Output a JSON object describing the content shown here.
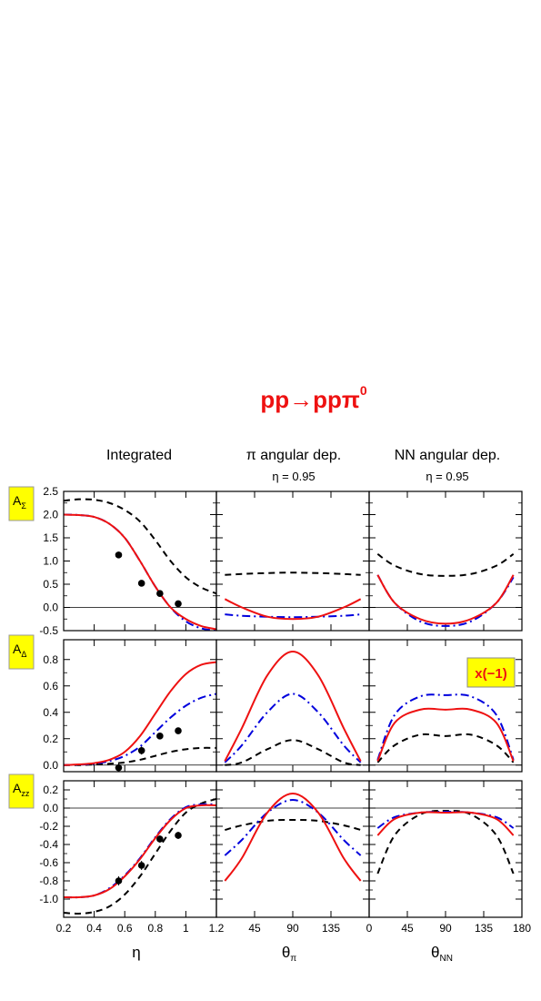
{
  "title": {
    "main": "pp→ppπ",
    "sup": "0"
  },
  "colors": {
    "black_dashed": "#000000",
    "blue_dashdot": "#0000dd",
    "red_solid": "#ee1111",
    "title": "#ee1111",
    "badge_bg": "#ffff00"
  },
  "columns": [
    {
      "header": "Integrated",
      "sub": ""
    },
    {
      "header": "π angular dep.",
      "sub": "η = 0.95"
    },
    {
      "header": "NN angular dep.",
      "sub": "η = 0.95"
    }
  ],
  "rows": [
    {
      "label": "A",
      "sub": "Σ"
    },
    {
      "label": "A",
      "sub": "Δ"
    },
    {
      "label": "A",
      "sub": "zz"
    }
  ],
  "xaxes": [
    {
      "label": "η",
      "sub": "",
      "range": [
        0.2,
        1.2
      ],
      "ticks": [
        "0.2",
        "0.4",
        "0.6",
        "0.8",
        "1",
        "1.2"
      ],
      "tickvals": [
        0.2,
        0.4,
        0.6,
        0.8,
        1.0,
        1.2
      ]
    },
    {
      "label": "θ",
      "sub": "π",
      "range": [
        0,
        180
      ],
      "ticks": [
        "45",
        "90",
        "135"
      ],
      "tickvals": [
        45,
        90,
        135
      ]
    },
    {
      "label": "θ",
      "sub": "NN",
      "range": [
        0,
        180
      ],
      "ticks": [
        "0",
        "45",
        "90",
        "135",
        "180"
      ],
      "tickvals": [
        0,
        45,
        90,
        135,
        180
      ]
    }
  ],
  "annotation": "x(−1)",
  "chart_data": [
    {
      "type": "line",
      "row": 0,
      "col": 0,
      "xlim": [
        0.2,
        1.2
      ],
      "ylim": [
        -0.5,
        2.5
      ],
      "yticks": [
        "-0.5",
        "0.0",
        "0.5",
        "1.0",
        "1.5",
        "2.0",
        "2.5"
      ],
      "ytickvals": [
        -0.5,
        0.0,
        0.5,
        1.0,
        1.5,
        2.0,
        2.5
      ],
      "series": [
        {
          "style": "black_dashed",
          "x": [
            0.2,
            0.3,
            0.4,
            0.5,
            0.6,
            0.7,
            0.8,
            0.9,
            1.0,
            1.1,
            1.2
          ],
          "y": [
            2.3,
            2.33,
            2.32,
            2.25,
            2.1,
            1.85,
            1.45,
            1.0,
            0.65,
            0.43,
            0.3
          ]
        },
        {
          "style": "blue_dashdot",
          "x": [
            0.2,
            0.3,
            0.4,
            0.5,
            0.6,
            0.7,
            0.8,
            0.9,
            1.0,
            1.1,
            1.2
          ],
          "y": [
            2.0,
            1.99,
            1.95,
            1.8,
            1.5,
            1.0,
            0.45,
            0.0,
            -0.3,
            -0.45,
            -0.5
          ]
        },
        {
          "style": "red_solid",
          "x": [
            0.2,
            0.3,
            0.4,
            0.5,
            0.6,
            0.7,
            0.8,
            0.9,
            1.0,
            1.1,
            1.2
          ],
          "y": [
            2.0,
            1.99,
            1.95,
            1.8,
            1.5,
            1.0,
            0.45,
            0.0,
            -0.25,
            -0.4,
            -0.47
          ]
        }
      ],
      "points": {
        "x": [
          0.56,
          0.71,
          0.83,
          0.95
        ],
        "y": [
          1.13,
          0.52,
          0.3,
          0.08
        ],
        "err": [
          0.07,
          0.06,
          0.05,
          0.05
        ]
      }
    },
    {
      "type": "line",
      "row": 0,
      "col": 1,
      "xlim": [
        0,
        180
      ],
      "ylim": [
        -0.5,
        2.5
      ],
      "series": [
        {
          "style": "black_dashed",
          "x": [
            10,
            30,
            60,
            90,
            120,
            150,
            170
          ],
          "y": [
            0.7,
            0.72,
            0.74,
            0.75,
            0.74,
            0.72,
            0.7
          ]
        },
        {
          "style": "blue_dashdot",
          "x": [
            10,
            30,
            60,
            90,
            120,
            150,
            170
          ],
          "y": [
            -0.15,
            -0.18,
            -0.2,
            -0.21,
            -0.2,
            -0.18,
            -0.15
          ]
        },
        {
          "style": "red_solid",
          "x": [
            10,
            30,
            60,
            90,
            120,
            150,
            170
          ],
          "y": [
            0.18,
            0.0,
            -0.2,
            -0.25,
            -0.2,
            0.0,
            0.18
          ]
        }
      ]
    },
    {
      "type": "line",
      "row": 0,
      "col": 2,
      "xlim": [
        0,
        180
      ],
      "ylim": [
        -0.5,
        2.5
      ],
      "series": [
        {
          "style": "black_dashed",
          "x": [
            10,
            30,
            60,
            90,
            120,
            150,
            170
          ],
          "y": [
            1.15,
            0.9,
            0.72,
            0.68,
            0.72,
            0.9,
            1.15
          ]
        },
        {
          "style": "blue_dashdot",
          "x": [
            10,
            30,
            60,
            90,
            120,
            150,
            170
          ],
          "y": [
            0.7,
            0.1,
            -0.3,
            -0.4,
            -0.3,
            0.1,
            0.65
          ]
        },
        {
          "style": "red_solid",
          "x": [
            10,
            30,
            60,
            90,
            120,
            150,
            170
          ],
          "y": [
            0.7,
            0.1,
            -0.25,
            -0.35,
            -0.25,
            0.1,
            0.7
          ]
        }
      ]
    },
    {
      "type": "line",
      "row": 1,
      "col": 0,
      "xlim": [
        0.2,
        1.2
      ],
      "ylim": [
        -0.05,
        0.95
      ],
      "yticks": [
        "0.0",
        "0.2",
        "0.4",
        "0.6",
        "0.8"
      ],
      "ytickvals": [
        0.0,
        0.2,
        0.4,
        0.6,
        0.8
      ],
      "series": [
        {
          "style": "black_dashed",
          "x": [
            0.2,
            0.3,
            0.4,
            0.5,
            0.6,
            0.7,
            0.8,
            0.9,
            1.0,
            1.1,
            1.2
          ],
          "y": [
            0.0,
            0.0,
            0.005,
            0.01,
            0.02,
            0.04,
            0.07,
            0.1,
            0.12,
            0.13,
            0.13
          ]
        },
        {
          "style": "blue_dashdot",
          "x": [
            0.2,
            0.3,
            0.4,
            0.5,
            0.6,
            0.7,
            0.8,
            0.9,
            1.0,
            1.1,
            1.2
          ],
          "y": [
            0.0,
            0.003,
            0.01,
            0.03,
            0.07,
            0.14,
            0.25,
            0.36,
            0.45,
            0.51,
            0.54
          ]
        },
        {
          "style": "red_solid",
          "x": [
            0.2,
            0.3,
            0.4,
            0.5,
            0.6,
            0.7,
            0.8,
            0.9,
            1.0,
            1.1,
            1.2
          ],
          "y": [
            0.0,
            0.005,
            0.015,
            0.04,
            0.1,
            0.22,
            0.39,
            0.56,
            0.69,
            0.76,
            0.78
          ]
        }
      ],
      "points": {
        "x": [
          0.56,
          0.71,
          0.83,
          0.95
        ],
        "y": [
          -0.02,
          0.11,
          0.22,
          0.26
        ],
        "err": [
          0.03,
          0.03,
          0.025,
          0.025
        ]
      }
    },
    {
      "type": "line",
      "row": 1,
      "col": 1,
      "xlim": [
        0,
        180
      ],
      "ylim": [
        -0.05,
        0.95
      ],
      "series": [
        {
          "style": "black_dashed",
          "x": [
            10,
            30,
            60,
            90,
            120,
            150,
            170
          ],
          "y": [
            0.0,
            0.02,
            0.12,
            0.19,
            0.12,
            0.02,
            0.0
          ]
        },
        {
          "style": "blue_dashdot",
          "x": [
            10,
            30,
            60,
            90,
            120,
            150,
            170
          ],
          "y": [
            0.02,
            0.15,
            0.4,
            0.54,
            0.4,
            0.15,
            0.02
          ]
        },
        {
          "style": "red_solid",
          "x": [
            10,
            30,
            60,
            90,
            120,
            150,
            170
          ],
          "y": [
            0.03,
            0.28,
            0.68,
            0.86,
            0.68,
            0.28,
            0.03
          ]
        }
      ]
    },
    {
      "type": "line",
      "row": 1,
      "col": 2,
      "xlim": [
        0,
        180
      ],
      "ylim": [
        -0.05,
        0.95
      ],
      "series": [
        {
          "style": "black_dashed",
          "x": [
            10,
            30,
            60,
            90,
            120,
            150,
            170
          ],
          "y": [
            0.02,
            0.15,
            0.23,
            0.22,
            0.23,
            0.15,
            0.02
          ]
        },
        {
          "style": "blue_dashdot",
          "x": [
            10,
            30,
            60,
            90,
            120,
            150,
            170
          ],
          "y": [
            0.04,
            0.38,
            0.52,
            0.53,
            0.52,
            0.38,
            0.04
          ]
        },
        {
          "style": "red_solid",
          "x": [
            10,
            30,
            60,
            90,
            120,
            150,
            170
          ],
          "y": [
            0.03,
            0.32,
            0.42,
            0.42,
            0.42,
            0.32,
            0.03
          ]
        }
      ]
    },
    {
      "type": "line",
      "row": 2,
      "col": 0,
      "xlim": [
        0.2,
        1.2
      ],
      "ylim": [
        -1.2,
        0.3
      ],
      "yticks": [
        "-1.0",
        "-0.8",
        "-0.6",
        "-0.4",
        "-0.2",
        "0.0",
        "0.2"
      ],
      "ytickvals": [
        -1.0,
        -0.8,
        -0.6,
        -0.4,
        -0.2,
        0.0,
        0.2
      ],
      "series": [
        {
          "style": "black_dashed",
          "x": [
            0.2,
            0.3,
            0.4,
            0.5,
            0.6,
            0.7,
            0.8,
            0.9,
            1.0,
            1.1,
            1.2
          ],
          "y": [
            -1.15,
            -1.16,
            -1.14,
            -1.08,
            -0.95,
            -0.75,
            -0.5,
            -0.25,
            -0.05,
            0.05,
            0.1
          ]
        },
        {
          "style": "blue_dashdot",
          "x": [
            0.2,
            0.3,
            0.4,
            0.5,
            0.6,
            0.7,
            0.8,
            0.9,
            1.0,
            1.1,
            1.2
          ],
          "y": [
            -0.98,
            -0.98,
            -0.96,
            -0.88,
            -0.74,
            -0.55,
            -0.32,
            -0.12,
            0.01,
            0.04,
            0.04
          ]
        },
        {
          "style": "red_solid",
          "x": [
            0.2,
            0.3,
            0.4,
            0.5,
            0.6,
            0.7,
            0.8,
            0.9,
            1.0,
            1.1,
            1.2
          ],
          "y": [
            -0.98,
            -0.98,
            -0.96,
            -0.89,
            -0.75,
            -0.56,
            -0.33,
            -0.13,
            0.0,
            0.03,
            0.03
          ]
        }
      ],
      "points": {
        "x": [
          0.56,
          0.71,
          0.83,
          0.95
        ],
        "y": [
          -0.8,
          -0.63,
          -0.34,
          -0.3
        ],
        "err": [
          0.05,
          0.05,
          0.04,
          0.04
        ]
      }
    },
    {
      "type": "line",
      "row": 2,
      "col": 1,
      "xlim": [
        0,
        180
      ],
      "ylim": [
        -1.2,
        0.3
      ],
      "series": [
        {
          "style": "black_dashed",
          "x": [
            10,
            30,
            60,
            90,
            120,
            150,
            170
          ],
          "y": [
            -0.24,
            -0.19,
            -0.14,
            -0.13,
            -0.14,
            -0.19,
            -0.24
          ]
        },
        {
          "style": "blue_dashdot",
          "x": [
            10,
            30,
            60,
            90,
            120,
            150,
            170
          ],
          "y": [
            -0.52,
            -0.35,
            -0.05,
            0.09,
            -0.05,
            -0.35,
            -0.52
          ]
        },
        {
          "style": "red_solid",
          "x": [
            10,
            30,
            60,
            90,
            120,
            150,
            170
          ],
          "y": [
            -0.8,
            -0.55,
            -0.05,
            0.16,
            -0.05,
            -0.55,
            -0.8
          ]
        }
      ]
    },
    {
      "type": "line",
      "row": 2,
      "col": 2,
      "xlim": [
        0,
        180
      ],
      "ylim": [
        -1.2,
        0.3
      ],
      "series": [
        {
          "style": "black_dashed",
          "x": [
            10,
            30,
            60,
            90,
            120,
            150,
            170
          ],
          "y": [
            -0.72,
            -0.3,
            -0.07,
            -0.03,
            -0.07,
            -0.3,
            -0.72
          ]
        },
        {
          "style": "blue_dashdot",
          "x": [
            10,
            30,
            60,
            90,
            120,
            150,
            170
          ],
          "y": [
            -0.22,
            -0.1,
            -0.05,
            -0.04,
            -0.05,
            -0.1,
            -0.22
          ]
        },
        {
          "style": "red_solid",
          "x": [
            10,
            30,
            60,
            90,
            120,
            150,
            170
          ],
          "y": [
            -0.3,
            -0.12,
            -0.05,
            -0.05,
            -0.05,
            -0.12,
            -0.3
          ]
        }
      ]
    }
  ]
}
